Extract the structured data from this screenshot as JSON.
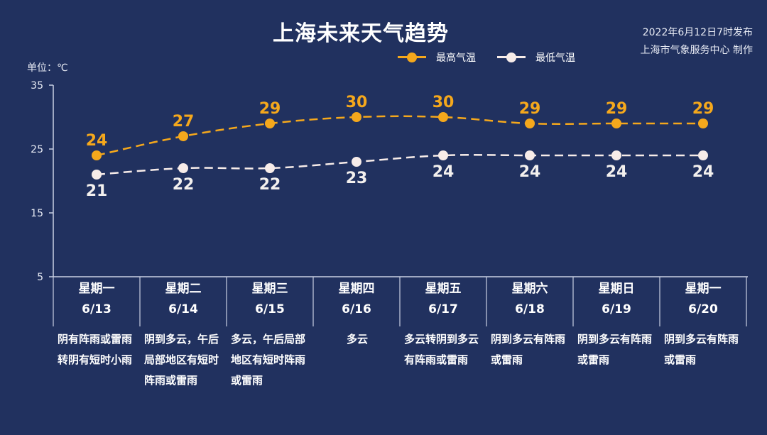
{
  "title": "上海未来天气趋势",
  "publish": {
    "date_line": "2022年6月12日7时发布",
    "org_line": "上海市气象服务中心 制作"
  },
  "unit_label": "单位：℃",
  "legend": {
    "high": "最高气温",
    "low": "最低气温"
  },
  "colors": {
    "background": "#21315f",
    "high": "#f5a81c",
    "low": "#f7ece9",
    "axis": "#c9d0e3"
  },
  "chart_data": {
    "type": "line",
    "categories": [
      "6/13",
      "6/14",
      "6/15",
      "6/16",
      "6/17",
      "6/18",
      "6/19",
      "6/20"
    ],
    "weekdays": [
      "星期一",
      "星期二",
      "星期三",
      "星期四",
      "星期五",
      "星期六",
      "星期日",
      "星期一"
    ],
    "series": [
      {
        "name": "最高气温",
        "values": [
          24,
          27,
          29,
          30,
          30,
          29,
          29,
          29
        ],
        "style": "dashed",
        "color": "#f5a81c"
      },
      {
        "name": "最低气温",
        "values": [
          21,
          22,
          22,
          23,
          24,
          24,
          24,
          24
        ],
        "style": "dashed",
        "color": "#f7ece9"
      }
    ],
    "ylim": [
      5,
      35
    ],
    "yticks": [
      5,
      15,
      25,
      35
    ],
    "ylabel": "单位：℃",
    "grid": false,
    "legend_position": "top-right"
  },
  "weather": [
    "阴有阵雨或雷雨转阴有短时小雨",
    "阴到多云，午后局部地区有短时阵雨或雷雨",
    "多云，午后局部地区有短时阵雨或雷雨",
    "多云",
    "多云转阴到多云有阵雨或雷雨",
    "阴到多云有阵雨或雷雨",
    "阴到多云有阵雨或雷雨",
    "阴到多云有阵雨或雷雨"
  ]
}
